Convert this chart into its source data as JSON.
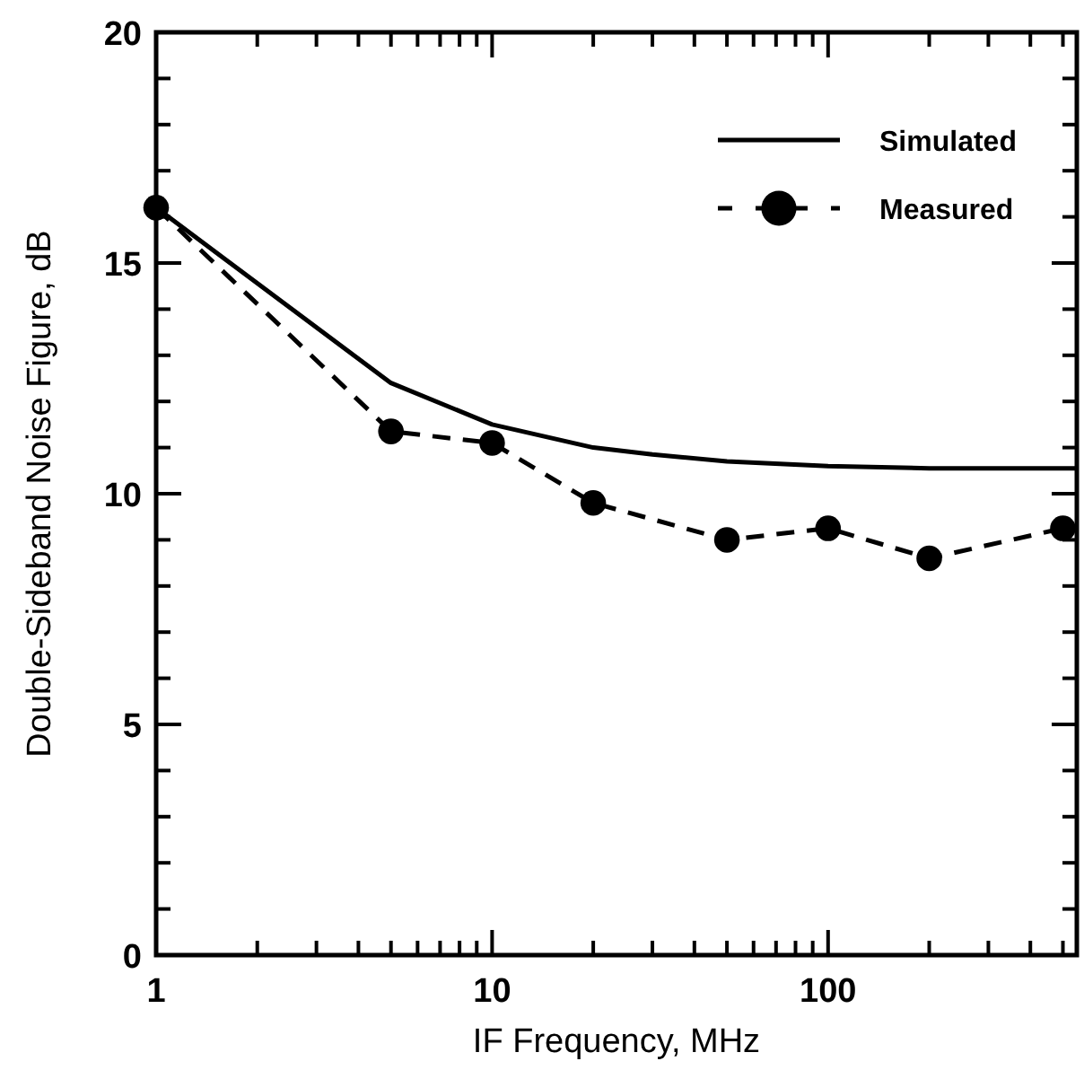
{
  "chart_data": {
    "type": "line",
    "xlabel": "IF Frequency, MHz",
    "ylabel": "Double-Sideband Noise Figure, dB",
    "log": "x",
    "xlim": [
      1,
      550
    ],
    "xticks": [
      1,
      {
        "value": 2,
        "label": null
      },
      {
        "value": 3,
        "label": null
      },
      {
        "value": 4,
        "label": null
      },
      {
        "value": 5,
        "label": null
      },
      {
        "value": 6,
        "label": null
      },
      {
        "value": 7,
        "label": null
      },
      {
        "value": 8,
        "label": null
      },
      {
        "value": 9,
        "label": null
      },
      10,
      {
        "value": 20,
        "label": null
      },
      {
        "value": 30,
        "label": null
      },
      {
        "value": 40,
        "label": null
      },
      {
        "value": 50,
        "label": null
      },
      {
        "value": 60,
        "label": null
      },
      {
        "value": 70,
        "label": null
      },
      {
        "value": 80,
        "label": null
      },
      {
        "value": 90,
        "label": null
      },
      100,
      {
        "value": 200,
        "label": null
      },
      {
        "value": 300,
        "label": null
      },
      {
        "value": 400,
        "label": null
      },
      {
        "value": 500,
        "label": null
      }
    ],
    "ylim": [
      0,
      20
    ],
    "yticks": [
      0,
      {
        "value": 1,
        "label": null
      },
      {
        "value": 2,
        "label": null
      },
      {
        "value": 3,
        "label": null
      },
      {
        "value": 4,
        "label": null
      },
      5,
      {
        "value": 6,
        "label": null
      },
      {
        "value": 7,
        "label": null
      },
      {
        "value": 8,
        "label": null
      },
      {
        "value": 9,
        "label": null
      },
      10,
      {
        "value": 11,
        "label": null
      },
      {
        "value": 12,
        "label": null
      },
      {
        "value": 13,
        "label": null
      },
      {
        "value": 14,
        "label": null
      },
      15,
      {
        "value": 16,
        "label": null
      },
      {
        "value": 17,
        "label": null
      },
      {
        "value": 18,
        "label": null
      },
      {
        "value": 19,
        "label": null
      },
      20
    ],
    "legend": "top right",
    "grid": false,
    "series": [
      {
        "name": "Simulated",
        "color": "#000000",
        "line_style": "solid",
        "marker": "none",
        "x": [
          1,
          5,
          10,
          20,
          30,
          50,
          100,
          200,
          550
        ],
        "values": [
          16.2,
          12.4,
          11.5,
          11.0,
          10.85,
          10.7,
          10.6,
          10.55,
          10.55
        ]
      },
      {
        "name": "Measured",
        "color": "#000000",
        "line_style": "dashed",
        "marker": "circle",
        "x": [
          1,
          5,
          10,
          20,
          50,
          100,
          200,
          500
        ],
        "values": [
          16.2,
          11.35,
          11.1,
          9.8,
          9.0,
          9.25,
          8.6,
          9.25
        ]
      }
    ]
  }
}
